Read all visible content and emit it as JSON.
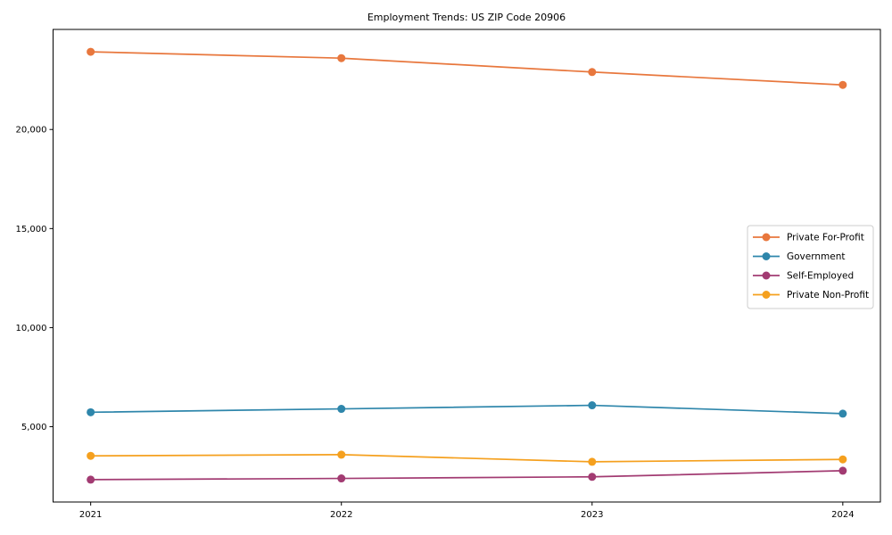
{
  "title": "Employment Trends: US ZIP Code 20906",
  "chart_data": {
    "type": "line",
    "title": "Employment Trends: US ZIP Code 20906",
    "xlabel": "",
    "ylabel": "",
    "x": [
      2021,
      2022,
      2023,
      2024
    ],
    "x_tick_labels": [
      "2021",
      "2022",
      "2023",
      "2024"
    ],
    "y_ticks": [
      5000,
      10000,
      15000,
      20000
    ],
    "y_tick_labels": [
      "5,000",
      "10,000",
      "15,000",
      "20,000"
    ],
    "xlim": [
      2020.85,
      2024.15
    ],
    "ylim": [
      1200,
      25050
    ],
    "grid": false,
    "legend_position": "center right",
    "marker": "circle",
    "series": [
      {
        "name": "Private For-Profit",
        "color": "#e8773d",
        "values": [
          23920,
          23600,
          22900,
          22250
        ]
      },
      {
        "name": "Government",
        "color": "#2e86ab",
        "values": [
          5730,
          5900,
          6080,
          5660
        ]
      },
      {
        "name": "Self-Employed",
        "color": "#a23b72",
        "values": [
          2330,
          2390,
          2470,
          2780
        ]
      },
      {
        "name": "Private Non-Profit",
        "color": "#f5a01e",
        "values": [
          3530,
          3590,
          3230,
          3350
        ]
      }
    ]
  }
}
